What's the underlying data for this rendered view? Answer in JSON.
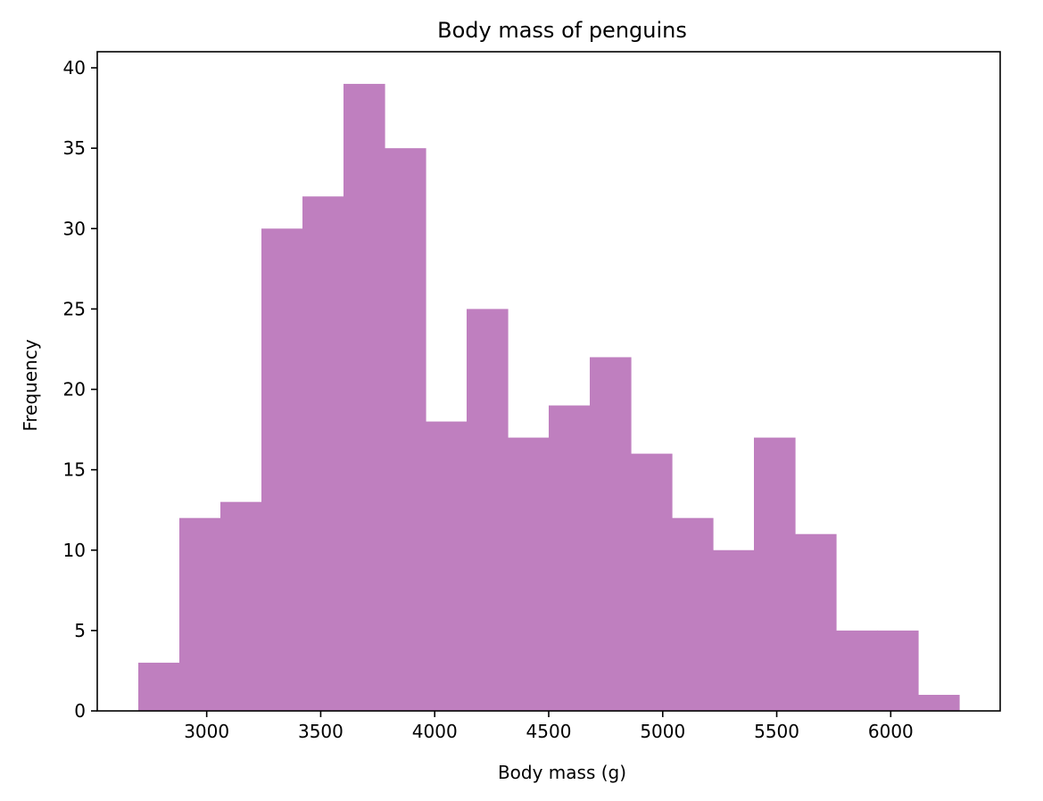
{
  "chart_data": {
    "type": "bar",
    "title": "Body mass of penguins",
    "xlabel": "Body mass (g)",
    "ylabel": "Frequency",
    "bin_edges": [
      2700,
      2880,
      3060,
      3240,
      3420,
      3600,
      3780,
      3960,
      4140,
      4320,
      4500,
      4680,
      4860,
      5040,
      5220,
      5400,
      5580,
      5760,
      5940,
      6120,
      6300
    ],
    "values": [
      3,
      12,
      13,
      30,
      32,
      39,
      35,
      18,
      25,
      17,
      19,
      22,
      16,
      12,
      10,
      17,
      11,
      5,
      5,
      1
    ],
    "xlim": [
      2520,
      6480
    ],
    "ylim": [
      0,
      41
    ],
    "x_ticks": [
      3000,
      3500,
      4000,
      4500,
      5000,
      5500,
      6000
    ],
    "y_ticks": [
      0,
      5,
      10,
      15,
      20,
      25,
      30,
      35,
      40
    ],
    "grid": false,
    "bar_color": "#bf7fbf"
  }
}
